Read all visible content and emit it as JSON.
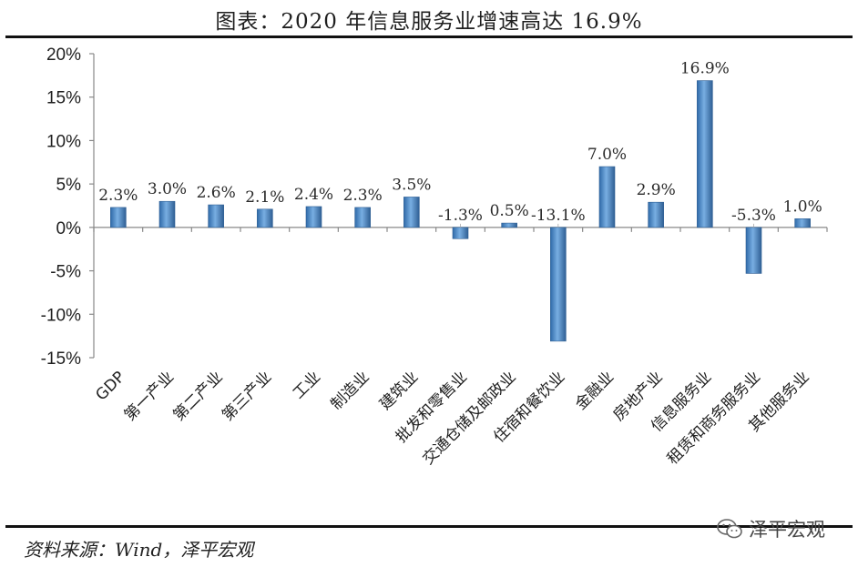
{
  "header": {
    "title": "图表：2020 年信息服务业增速高达 16.9%"
  },
  "footer": {
    "source": "资料来源：Wind，泽平宏观",
    "watermark_text": "泽平宏观",
    "watermark_icon": "wechat-icon"
  },
  "colors": {
    "bar": "#4a86c8",
    "bar_edge": "#2f5f94",
    "axis": "#888888",
    "rule": "#111111"
  },
  "chart_data": {
    "type": "bar",
    "title": "",
    "xlabel": "",
    "ylabel": "",
    "ylim": [
      -15,
      20
    ],
    "yticks": [
      20,
      15,
      10,
      5,
      0,
      -5,
      -10,
      -15
    ],
    "ytick_labels": [
      "20%",
      "15%",
      "10%",
      "5%",
      "0%",
      "-5%",
      "-10%",
      "-15%"
    ],
    "categories": [
      "GDP",
      "第一产业",
      "第二产业",
      "第三产业",
      "工业",
      "制造业",
      "建筑业",
      "批发和零售业",
      "交通仓储及邮政业",
      "住宿和餐饮业",
      "金融业",
      "房地产业",
      "信息服务业",
      "租赁和商务服务业",
      "其他服务业"
    ],
    "values": [
      2.3,
      3.0,
      2.6,
      2.1,
      2.4,
      2.3,
      3.5,
      -1.3,
      0.5,
      -13.1,
      7.0,
      2.9,
      16.9,
      -5.3,
      1.0
    ],
    "data_labels": [
      "2.3%",
      "3.0%",
      "2.6%",
      "2.1%",
      "2.4%",
      "2.3%",
      "3.5%",
      "-1.3%",
      "0.5%",
      "-13.1%",
      "7.0%",
      "2.9%",
      "16.9%",
      "-5.3%",
      "1.0%"
    ],
    "grid": false,
    "legend": "none"
  }
}
